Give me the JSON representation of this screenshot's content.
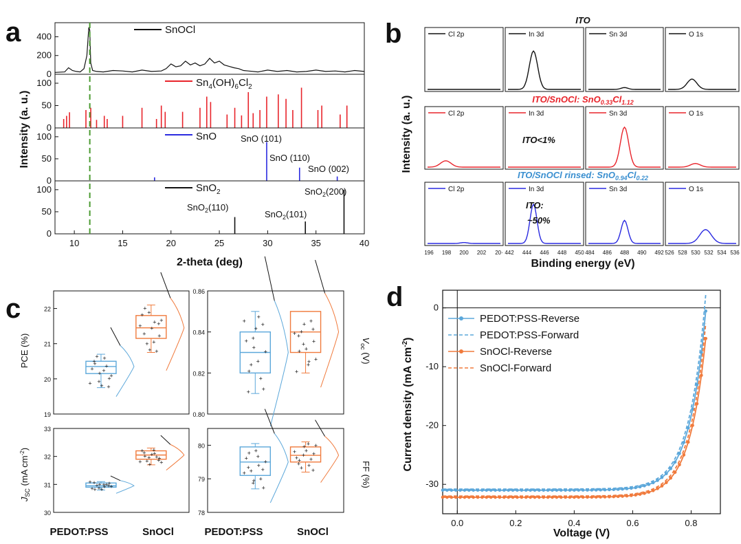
{
  "colors": {
    "black": "#111111",
    "red": "#e8232a",
    "blue": "#2a2ae0",
    "green": "#4a9a30",
    "lightblue": "#5ba7da",
    "orange": "#f07a3c",
    "redtitle": "#e8232a",
    "bluetitle": "#3a8fd0"
  },
  "panels": {
    "a": "a",
    "b": "b",
    "c": "c",
    "d": "d"
  },
  "chart_data": [
    {
      "panel": "a",
      "type": "line+stem",
      "xlabel": "2-theta (deg)",
      "ylabel": "Intensity (a. u.)",
      "xlim": [
        8,
        40
      ],
      "xticks": [
        "10",
        "15",
        "20",
        "25",
        "30",
        "35",
        "40"
      ],
      "guide_line_x": 11.6,
      "subplots": [
        {
          "name": "SnOCl",
          "legend": "SnOCl",
          "color": "#111111",
          "ylim": [
            0,
            550
          ],
          "yticks": [
            "0",
            "200",
            "400"
          ],
          "kind": "line",
          "x": [
            8,
            9,
            9.4,
            9.8,
            10.2,
            10.6,
            11,
            11.3,
            11.5,
            11.6,
            11.7,
            11.9,
            12.3,
            13,
            14,
            15,
            16,
            17,
            18,
            19,
            19.5,
            20,
            20.5,
            21,
            21.5,
            22,
            22.5,
            23,
            23.5,
            24,
            24.5,
            25,
            25.5,
            26,
            26.5,
            27,
            27.5,
            28,
            29,
            30,
            31,
            32,
            33,
            34,
            35,
            36,
            37,
            38,
            39,
            40
          ],
          "y": [
            20,
            25,
            70,
            40,
            30,
            25,
            60,
            200,
            500,
            470,
            120,
            40,
            30,
            25,
            40,
            35,
            25,
            45,
            30,
            35,
            60,
            110,
            80,
            90,
            140,
            100,
            120,
            90,
            110,
            170,
            120,
            140,
            100,
            85,
            70,
            60,
            40,
            35,
            25,
            45,
            30,
            40,
            25,
            30,
            45,
            30,
            35,
            25,
            40,
            30
          ]
        },
        {
          "name": "Sn4(OH)6Cl2",
          "legend": "Sn4(OH)6Cl2",
          "color": "#e8232a",
          "ylim": [
            0,
            120
          ],
          "yticks": [
            "0",
            "50",
            "100"
          ],
          "kind": "stem",
          "x": [
            8.9,
            9.2,
            9.5,
            11.2,
            11.7,
            12.3,
            13.1,
            13.4,
            15,
            17,
            18.5,
            19,
            19.4,
            21.2,
            23,
            23.7,
            24.1,
            25.8,
            26.6,
            27.3,
            28,
            28.5,
            29.2,
            29.9,
            31.1,
            31.9,
            32.6,
            33.5,
            35.2,
            35.6,
            37.5,
            38.2
          ],
          "y": [
            20,
            27,
            35,
            40,
            45,
            18,
            27,
            20,
            27,
            45,
            20,
            50,
            36,
            36,
            45,
            70,
            58,
            30,
            45,
            28,
            80,
            33,
            40,
            70,
            75,
            65,
            40,
            90,
            40,
            50,
            30,
            50
          ]
        },
        {
          "name": "SnO",
          "legend": "SnO",
          "color": "#2a2ae0",
          "ylim": [
            0,
            120
          ],
          "yticks": [
            "0",
            "50",
            "100"
          ],
          "kind": "stem",
          "x": [
            18.3,
            29.9,
            33.3,
            37.2
          ],
          "y": [
            8,
            88,
            30,
            10
          ],
          "annotations": [
            "SnO (101)",
            "SnO (110)",
            "SnO (002)"
          ]
        },
        {
          "name": "SnO2",
          "legend": "SnO2",
          "color": "#111111",
          "ylim": [
            0,
            120
          ],
          "yticks": [
            "0",
            "50",
            "100"
          ],
          "kind": "stem",
          "x": [
            26.6,
            33.9,
            37.9
          ],
          "y": [
            38,
            28,
            100
          ],
          "annotations": [
            "SnO2(110)",
            "SnO2(101)",
            "SnO2(200)"
          ]
        }
      ]
    },
    {
      "panel": "b",
      "type": "line",
      "xlabel": "Binding energy (eV)",
      "ylabel": "Intensity (a. u.)",
      "columns": [
        "Cl 2p",
        "In 3d",
        "Sn 3d",
        "O 1s"
      ],
      "tick_labels": [
        [
          "196",
          "198",
          "200",
          "202",
          "20·"
        ],
        [
          "442",
          "444",
          "446",
          "448",
          "450"
        ],
        [
          "484",
          "486",
          "488",
          "490",
          "492"
        ],
        [
          "526",
          "528",
          "530",
          "532",
          "534",
          "536"
        ]
      ],
      "rows": [
        {
          "title": "ITO",
          "color": "#111111",
          "peaks": [
            [
              0.5,
              0.1,
              0
            ],
            [
              0.35,
              0.12,
              0.82
            ],
            [
              0.5,
              0.1,
              0.04
            ],
            [
              0.35,
              0.15,
              0.22
            ]
          ]
        },
        {
          "title": "ITO/SnOCl: SnO0.33Cl1.12",
          "color": "#e8232a",
          "note": "ITO<1%",
          "peaks": [
            [
              0.25,
              0.15,
              0.14
            ],
            [
              0.5,
              0.1,
              0
            ],
            [
              0.5,
              0.12,
              0.88
            ],
            [
              0.4,
              0.15,
              0.08
            ]
          ]
        },
        {
          "title": "ITO/SnOCl rinsed: SnO0.94Cl0.22",
          "color": "#2a2ae0",
          "note": "ITO: ~50%",
          "peaks": [
            [
              0.5,
              0.1,
              0.02
            ],
            [
              0.35,
              0.1,
              0.85
            ],
            [
              0.5,
              0.1,
              0.5
            ],
            [
              0.55,
              0.18,
              0.3
            ]
          ]
        }
      ]
    },
    {
      "panel": "c",
      "type": "box",
      "groups": [
        "PEDOT:PSS",
        "SnOCl"
      ],
      "group_colors": [
        "#5ba7da",
        "#f07a3c"
      ],
      "subplots": [
        {
          "ylabel": "PCE (%)",
          "ylim": [
            19,
            22.5
          ],
          "yticks": [
            "19",
            "20",
            "21",
            "22"
          ],
          "boxes": [
            {
              "q1": 20.15,
              "median": 20.35,
              "q3": 20.5,
              "min": 19.75,
              "max": 20.7
            },
            {
              "q1": 21.15,
              "median": 21.45,
              "q3": 21.8,
              "min": 20.75,
              "max": 22.1
            }
          ]
        },
        {
          "ylabel": "Voc (V)",
          "ylim": [
            0.8,
            0.86
          ],
          "yticks": [
            "0.80",
            "0.82",
            "0.84",
            "0.86"
          ],
          "boxes": [
            {
              "q1": 0.82,
              "median": 0.83,
              "q3": 0.84,
              "min": 0.81,
              "max": 0.85
            },
            {
              "q1": 0.83,
              "median": 0.84,
              "q3": 0.85,
              "min": 0.82,
              "max": 0.85
            }
          ]
        },
        {
          "ylabel": "Jsc (mA cm-2)",
          "ylim": [
            30,
            33
          ],
          "yticks": [
            "30",
            "31",
            "32",
            "33"
          ],
          "boxes": [
            {
              "q1": 30.9,
              "median": 30.95,
              "q3": 31.05,
              "min": 30.8,
              "max": 31.1
            },
            {
              "q1": 31.9,
              "median": 32.05,
              "q3": 32.2,
              "min": 31.7,
              "max": 32.3
            }
          ]
        },
        {
          "ylabel": "FF (%)",
          "ylim": [
            78,
            80.5
          ],
          "yticks": [
            "78",
            "79",
            "80"
          ],
          "boxes": [
            {
              "q1": 79.1,
              "median": 79.5,
              "q3": 79.95,
              "min": 78.7,
              "max": 80.05
            },
            {
              "q1": 79.5,
              "median": 79.7,
              "q3": 79.95,
              "min": 79.2,
              "max": 80.1
            }
          ]
        }
      ]
    },
    {
      "panel": "d",
      "type": "line",
      "xlabel": "Voltage (V)",
      "ylabel": "Current density (mA cm-2)",
      "xlim": [
        -0.05,
        0.9
      ],
      "ylim": [
        -35,
        3
      ],
      "xticks": [
        "0.0",
        "0.2",
        "0.4",
        "0.6",
        "0.8"
      ],
      "yticks": [
        "0",
        "-10",
        "-20",
        "-30"
      ],
      "legend_position": "top-left",
      "series": [
        {
          "name": "PEDOT:PSS-Reverse",
          "color": "#5ba7da",
          "dash": false,
          "markers": true,
          "jsc": -31.0,
          "voc": 0.851,
          "rs": 6.0,
          "n": 2.2
        },
        {
          "name": "PEDOT:PSS-Forward",
          "color": "#5ba7da",
          "dash": true,
          "markers": false,
          "jsc": -30.8,
          "voc": 0.846,
          "rs": 6.0,
          "n": 2.2
        },
        {
          "name": "SnOCl-Reverse",
          "color": "#f07a3c",
          "dash": false,
          "markers": true,
          "jsc": -32.2,
          "voc": 0.86,
          "rs": 4.0,
          "n": 2.2
        },
        {
          "name": "SnOCl-Forward",
          "color": "#f07a3c",
          "dash": true,
          "markers": false,
          "jsc": -32.0,
          "voc": 0.855,
          "rs": 4.0,
          "n": 2.2
        }
      ]
    }
  ]
}
